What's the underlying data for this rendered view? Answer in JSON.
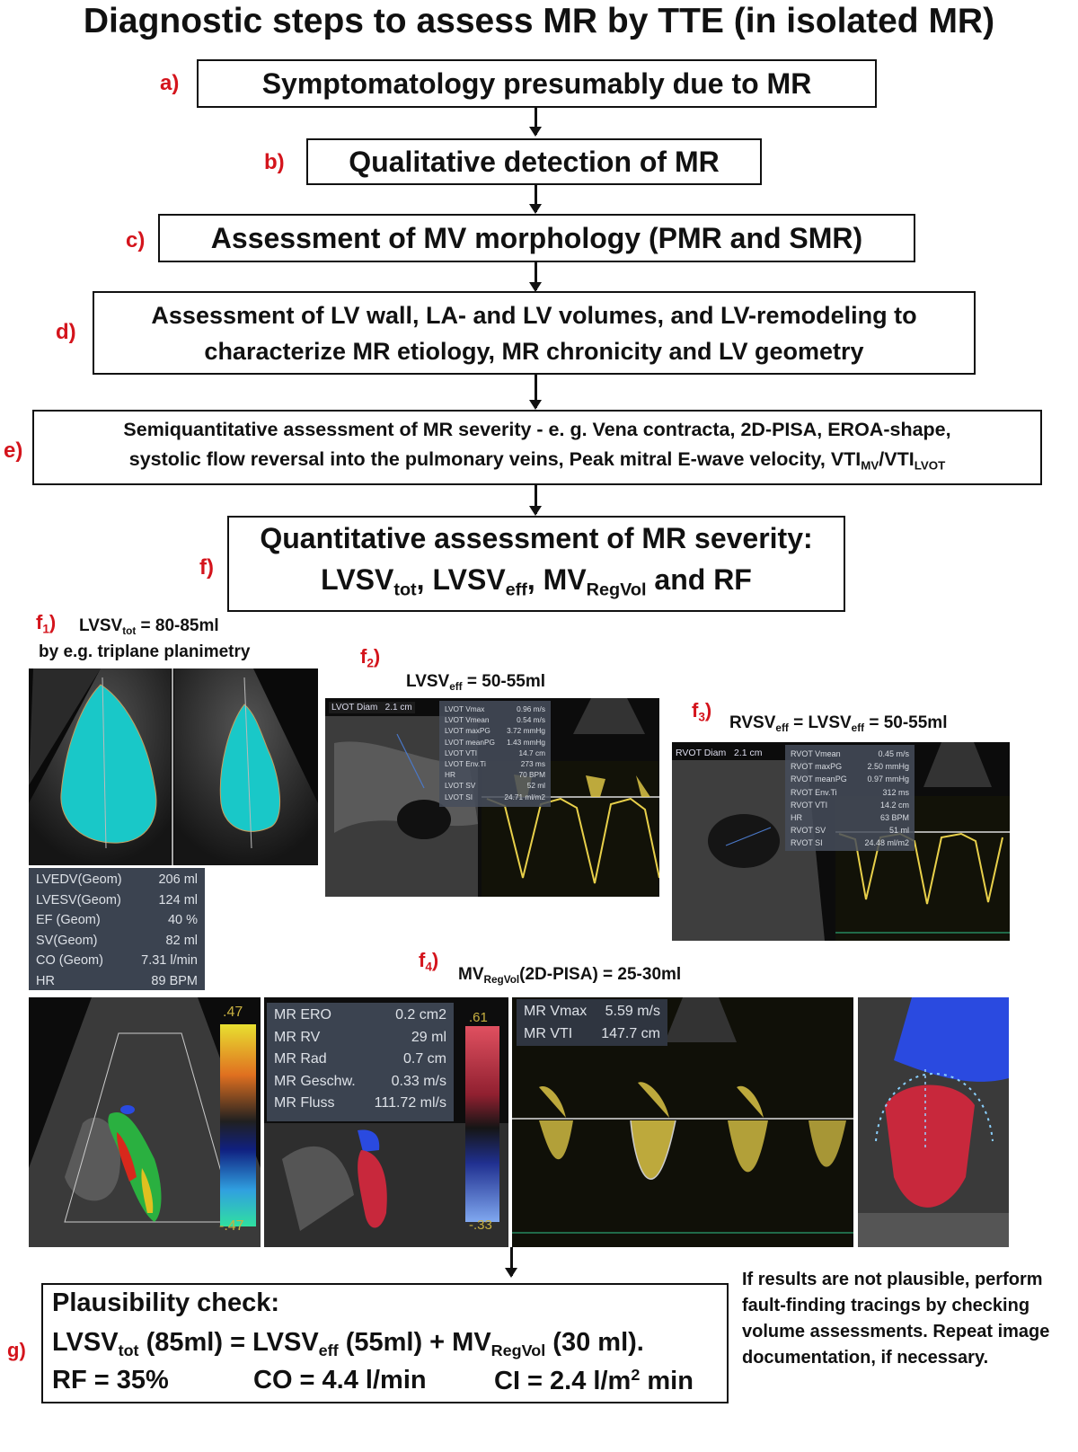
{
  "title": "Diagnostic steps to assess MR by TTE (in isolated MR)",
  "steps": [
    {
      "label": "a)",
      "text": "Symptomatology presumably due to MR"
    },
    {
      "label": "b)",
      "text": "Qualitative detection of MR"
    },
    {
      "label": "c)",
      "text": "Assessment of MV morphology (PMR and SMR)"
    },
    {
      "label": "d)",
      "line1": "Assessment of  LV wall, LA- and LV volumes, and LV-remodeling to",
      "line2": "characterize MR etiology, MR chronicity and LV geometry"
    },
    {
      "label": "e)",
      "line1": "Semiquantitative assessment of MR severity - e. g. Vena contracta, 2D-PISA, EROA-shape,",
      "line2_pre": "systolic flow reversal into the pulmonary veins, Peak mitral E-wave velocity, VTI",
      "sub1": "MV",
      "slash": "/VTI",
      "sub2": "LVOT"
    },
    {
      "label": "f)",
      "line1": "Quantitative assessment of MR severity:",
      "t1": "LVSV",
      "s1": "tot",
      "t2": ", LVSV",
      "s2": "eff",
      "t3": ", MV",
      "s3": "RegVol",
      "t4": " and RF"
    }
  ],
  "f1": {
    "label": "f",
    "label_sub": "1",
    "label_paren": ")",
    "caption_pre": "LVSV",
    "caption_sub": "tot",
    "caption_post": " =  80-85ml",
    "caption_line2": "by e.g. triplane planimetry"
  },
  "f1_measurements": [
    {
      "name": "LVEDV(Geom)",
      "value": "206 ml"
    },
    {
      "name": "LVESV(Geom)",
      "value": "124 ml"
    },
    {
      "name": "EF (Geom)",
      "value": "40 %"
    },
    {
      "name": "SV(Geom)",
      "value": "82 ml"
    },
    {
      "name": "CO (Geom)",
      "value": "7.31 l/min"
    },
    {
      "name": "HR",
      "value": "89 BPM"
    }
  ],
  "f2": {
    "label": "f",
    "label_sub": "2",
    "label_paren": ")",
    "caption_pre": "LVSV",
    "caption_sub": "eff",
    "caption_post": " = 50-55ml",
    "diam_label": "LVOT Diam",
    "diam_value": "2.1 cm"
  },
  "f2_measurements": [
    {
      "name": "LVOT Vmax",
      "value": "0.96 m/s"
    },
    {
      "name": "LVOT Vmean",
      "value": "0.54 m/s"
    },
    {
      "name": "LVOT maxPG",
      "value": "3.72 mmHg"
    },
    {
      "name": "LVOT meanPG",
      "value": "1.43 mmHg"
    },
    {
      "name": "LVOT VTI",
      "value": "14.7 cm"
    },
    {
      "name": "LVOT Env.Ti",
      "value": "273 ms"
    },
    {
      "name": "HR",
      "value": "70 BPM"
    },
    {
      "name": "LVOT SV",
      "value": "52 ml"
    },
    {
      "name": "LVOT SI",
      "value": "24.71 ml/m2"
    }
  ],
  "f3": {
    "label": "f",
    "label_sub": "3",
    "label_paren": ")",
    "c1": "RVSV",
    "c1_sub": "eff",
    "c2": " = LVSV",
    "c2_sub": "eff",
    "c3": " = 50-55ml",
    "diam_label": "RVOT Diam",
    "diam_value": "2.1 cm"
  },
  "f3_measurements": [
    {
      "name": "RVOT Vmean",
      "value": "0.45 m/s"
    },
    {
      "name": "RVOT maxPG",
      "value": "2.50 mmHg"
    },
    {
      "name": "RVOT meanPG",
      "value": "0.97 mmHg"
    },
    {
      "name": "RVOT Env.Ti",
      "value": "312 ms"
    },
    {
      "name": "RVOT VTI",
      "value": "14.2 cm"
    },
    {
      "name": "HR",
      "value": "63 BPM"
    },
    {
      "name": "RVOT SV",
      "value": "51 ml"
    },
    {
      "name": "RVOT SI",
      "value": "24.48 ml/m2"
    }
  ],
  "f4": {
    "label": "f",
    "label_sub": "4",
    "label_paren": ")",
    "caption_pre": "MV",
    "caption_sub": "RegVol",
    "caption_post": "(2D-PISA) = 25-30ml",
    "scale1_top": ".47",
    "scale1_bottom": "-.47",
    "scale2_top": ".61",
    "scale2_bottom": "-.33"
  },
  "f4_pisa_measurements": [
    {
      "name": "MR ERO",
      "value": "0.2 cm2"
    },
    {
      "name": "MR RV",
      "value": "29 ml"
    },
    {
      "name": "MR Rad",
      "value": "0.7 cm"
    },
    {
      "name": "MR Geschw.",
      "value": "0.33 m/s"
    },
    {
      "name": "MR Fluss",
      "value": "111.72 ml/s"
    }
  ],
  "f4_doppler_measurements": [
    {
      "name": "MR Vmax",
      "value": "5.59 m/s"
    },
    {
      "name": "MR VTI",
      "value": "147.7 cm"
    }
  ],
  "g": {
    "label": "g)",
    "heading": "Plausibility check:",
    "l2a": "LVSV",
    "l2a_sub": "tot",
    "l2b": " (85ml) = LVSV",
    "l2b_sub": "eff",
    "l2c": " (55ml) + MV",
    "l2c_sub": "RegVol",
    "l2d": "  (30 ml).",
    "rf": "RF  =  35%",
    "co": "CO =  4.4 l/min",
    "ci_pre": "CI = 2.4 l/m",
    "ci_sup": "2",
    "ci_post": " min"
  },
  "note": "If results are not plausible, perform fault-finding tracings by checking volume assessments. Repeat image documentation, if necessary.",
  "colors": {
    "label_red": "#d4141c",
    "tissue_cyan": "#19c8c8",
    "doppler_yellow": "#e8d04a",
    "flow_red": "#c8283c",
    "flow_blue": "#2a4ae0"
  }
}
